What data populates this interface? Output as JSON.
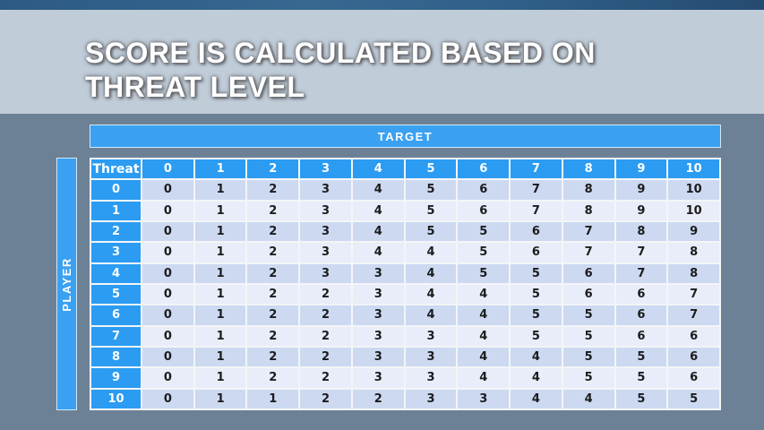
{
  "slide": {
    "title_line1": "SCORE IS CALCULATED BASED ON",
    "title_line2": "THREAT LEVEL"
  },
  "matrix": {
    "target_label": "TARGET",
    "player_label": "PLAYER",
    "corner_label": "Threat",
    "column_headers": [
      "0",
      "1",
      "2",
      "3",
      "4",
      "5",
      "6",
      "7",
      "8",
      "9",
      "10"
    ],
    "rows": [
      {
        "header": "0",
        "values": [
          0,
          1,
          2,
          3,
          4,
          5,
          6,
          7,
          8,
          9,
          10
        ]
      },
      {
        "header": "1",
        "values": [
          0,
          1,
          2,
          3,
          4,
          5,
          6,
          7,
          8,
          9,
          10
        ]
      },
      {
        "header": "2",
        "values": [
          0,
          1,
          2,
          3,
          4,
          5,
          5,
          6,
          7,
          8,
          9
        ]
      },
      {
        "header": "3",
        "values": [
          0,
          1,
          2,
          3,
          4,
          4,
          5,
          6,
          7,
          7,
          8
        ]
      },
      {
        "header": "4",
        "values": [
          0,
          1,
          2,
          3,
          3,
          4,
          5,
          5,
          6,
          7,
          8
        ]
      },
      {
        "header": "5",
        "values": [
          0,
          1,
          2,
          2,
          3,
          4,
          4,
          5,
          6,
          6,
          7
        ]
      },
      {
        "header": "6",
        "values": [
          0,
          1,
          2,
          2,
          3,
          4,
          4,
          5,
          5,
          6,
          7
        ]
      },
      {
        "header": "7",
        "values": [
          0,
          1,
          2,
          2,
          3,
          3,
          4,
          5,
          5,
          6,
          6
        ]
      },
      {
        "header": "8",
        "values": [
          0,
          1,
          2,
          2,
          3,
          3,
          4,
          4,
          5,
          5,
          6
        ]
      },
      {
        "header": "9",
        "values": [
          0,
          1,
          2,
          2,
          3,
          3,
          4,
          4,
          5,
          5,
          6
        ]
      },
      {
        "header": "10",
        "values": [
          0,
          1,
          1,
          2,
          2,
          3,
          3,
          4,
          4,
          5,
          5
        ]
      }
    ]
  },
  "colors": {
    "header_blue": "#2b9cf2",
    "bar_blue": "#3aa1f2",
    "band_light_blue": "#ccd9f1",
    "band_pale": "#e9edf9",
    "top_strip_blue": "#2e5e8c",
    "cell_text": "#1b1b1d"
  }
}
